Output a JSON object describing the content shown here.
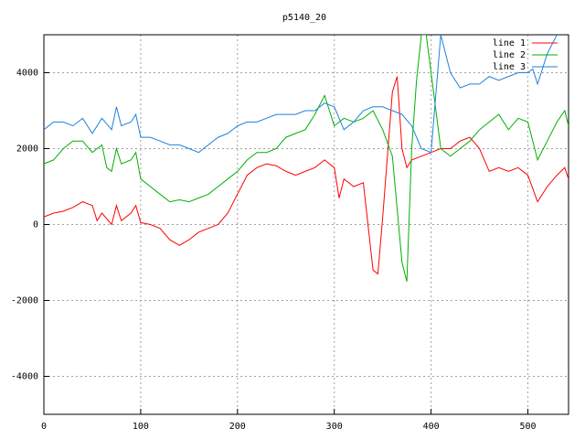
{
  "chart_data": {
    "type": "line",
    "title": "p5140_20",
    "xlim": [
      0,
      542
    ],
    "ylim": [
      -5000,
      5000
    ],
    "xticks": [
      0,
      100,
      200,
      300,
      400,
      500
    ],
    "yticks": [
      -4000,
      -2000,
      0,
      2000,
      4000
    ],
    "grid": true,
    "legend": "top-right",
    "series": [
      {
        "name": "line 1",
        "color": "#ff0000",
        "x": [
          0,
          10,
          20,
          30,
          40,
          50,
          55,
          60,
          70,
          75,
          80,
          90,
          95,
          100,
          110,
          120,
          130,
          140,
          150,
          160,
          170,
          180,
          190,
          200,
          210,
          220,
          230,
          240,
          250,
          260,
          270,
          280,
          290,
          300,
          305,
          310,
          320,
          330,
          340,
          345,
          350,
          360,
          365,
          370,
          375,
          380,
          390,
          400,
          410,
          420,
          430,
          440,
          450,
          460,
          470,
          480,
          490,
          500,
          510,
          520,
          530,
          538,
          542
        ],
        "values": [
          200,
          300,
          350,
          450,
          600,
          500,
          100,
          300,
          0,
          500,
          100,
          300,
          500,
          50,
          0,
          -100,
          -400,
          -550,
          -400,
          -200,
          -100,
          0,
          300,
          800,
          1300,
          1500,
          1600,
          1550,
          1400,
          1300,
          1400,
          1500,
          1700,
          1500,
          700,
          1200,
          1000,
          1100,
          -1200,
          -1300,
          200,
          3500,
          3900,
          2000,
          1500,
          1700,
          1800,
          1900,
          2000,
          2000,
          2200,
          2300,
          2000,
          1400,
          1500,
          1400,
          1500,
          1300,
          600,
          1000,
          1300,
          1500,
          1200
        ]
      },
      {
        "name": "line 2",
        "color": "#00b000",
        "x": [
          0,
          10,
          20,
          30,
          40,
          50,
          60,
          65,
          70,
          75,
          80,
          90,
          95,
          100,
          110,
          120,
          130,
          140,
          150,
          160,
          170,
          180,
          190,
          200,
          210,
          220,
          230,
          240,
          250,
          260,
          270,
          280,
          290,
          300,
          310,
          320,
          330,
          340,
          350,
          360,
          370,
          375,
          380,
          385,
          390,
          395,
          400,
          410,
          420,
          430,
          440,
          450,
          460,
          470,
          480,
          490,
          500,
          510,
          520,
          530,
          538,
          542
        ],
        "values": [
          1600,
          1700,
          2000,
          2200,
          2200,
          1900,
          2100,
          1500,
          1400,
          2000,
          1600,
          1700,
          1900,
          1200,
          1000,
          800,
          600,
          650,
          600,
          700,
          800,
          1000,
          1200,
          1400,
          1700,
          1900,
          1900,
          2000,
          2300,
          2400,
          2500,
          2900,
          3400,
          2600,
          2800,
          2700,
          2800,
          3000,
          2500,
          1800,
          -1000,
          -1500,
          2000,
          3800,
          5000,
          5000,
          4000,
          2000,
          1800,
          2000,
          2200,
          2500,
          2700,
          2900,
          2500,
          2800,
          2700,
          1700,
          2200,
          2700,
          3000,
          2600
        ]
      },
      {
        "name": "line 3",
        "color": "#1e82dc",
        "x": [
          0,
          10,
          20,
          30,
          40,
          50,
          60,
          70,
          75,
          80,
          90,
          95,
          100,
          110,
          120,
          130,
          140,
          150,
          160,
          170,
          180,
          190,
          200,
          210,
          220,
          230,
          240,
          250,
          260,
          270,
          280,
          290,
          300,
          310,
          320,
          330,
          340,
          350,
          360,
          370,
          380,
          390,
          400,
          410,
          420,
          430,
          440,
          450,
          460,
          470,
          480,
          490,
          500,
          505,
          510,
          520,
          530
        ],
        "values": [
          2500,
          2700,
          2700,
          2600,
          2800,
          2400,
          2800,
          2500,
          3100,
          2600,
          2700,
          2900,
          2300,
          2300,
          2200,
          2100,
          2100,
          2000,
          1900,
          2100,
          2300,
          2400,
          2600,
          2700,
          2700,
          2800,
          2900,
          2900,
          2900,
          3000,
          3000,
          3200,
          3100,
          2500,
          2700,
          3000,
          3100,
          3100,
          3000,
          2900,
          2600,
          2000,
          1900,
          5000,
          4000,
          3600,
          3700,
          3700,
          3900,
          3800,
          3900,
          4000,
          4000,
          4100,
          3700,
          4500,
          5000
        ]
      }
    ]
  }
}
